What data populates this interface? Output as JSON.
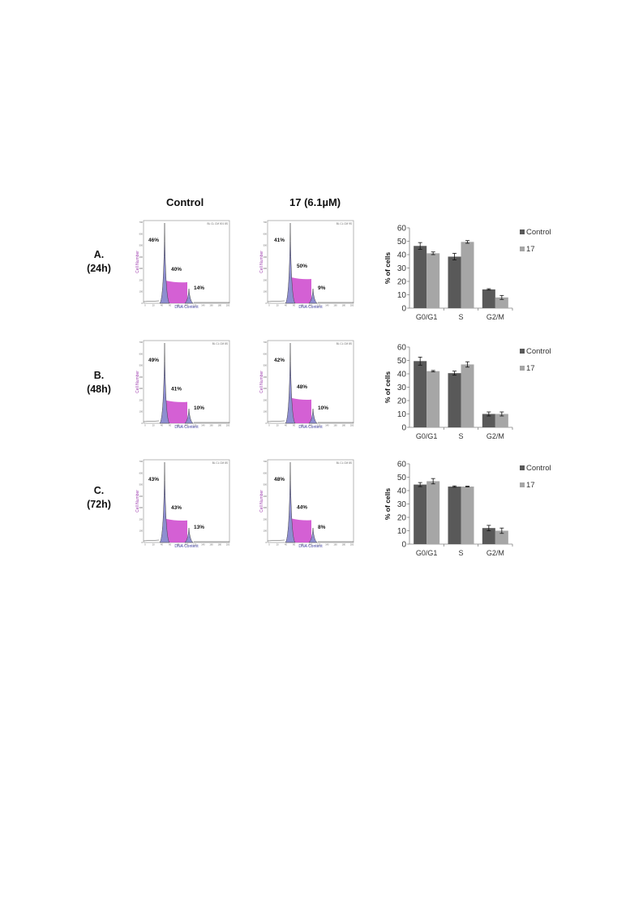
{
  "headers": {
    "control": "Control",
    "treated": "17 (6.1µM)"
  },
  "rows": [
    {
      "label": "A.\n(24h)",
      "control_hist": {
        "header": "BL CL CM 001 8S",
        "g0g1": "46%",
        "s": "40%",
        "g2m": "14%"
      },
      "treated_hist": {
        "header": "BL CL CM 9S",
        "g0g1": "41%",
        "s": "50%",
        "g2m": "9%"
      }
    },
    {
      "label": "B.\n(48h)",
      "control_hist": {
        "header": "BL CL CM 8S",
        "g0g1": "49%",
        "s": "41%",
        "g2m": "10%"
      },
      "treated_hist": {
        "header": "BL CL CM 8S",
        "g0g1": "42%",
        "s": "48%",
        "g2m": "10%"
      }
    },
    {
      "label": "C.\n(72h)",
      "control_hist": {
        "header": "BL CL CM 8S",
        "g0g1": "43%",
        "s": "43%",
        "g2m": "13%"
      },
      "treated_hist": {
        "header": "BL CL CM 8S",
        "g0g1": "48%",
        "s": "44%",
        "g2m": "8%"
      }
    }
  ],
  "hist_axes": {
    "ylabel": "Cell Number",
    "xlabel": "DNA Content",
    "yticks": [
      "700",
      "600",
      "500",
      "400",
      "300",
      "200",
      "100",
      "0"
    ],
    "xticks": [
      "0",
      "20",
      "40",
      "60",
      "80",
      "100",
      "120",
      "140",
      "160",
      "180",
      "200"
    ],
    "fill_color": "#cc44cc",
    "peak_color": "#8e8ed0"
  },
  "chart_data": [
    {
      "type": "bar",
      "categories": [
        "G0/G1",
        "S",
        "G2/M"
      ],
      "series": [
        {
          "name": "Control",
          "values": [
            46.5,
            38.5,
            14
          ],
          "errors": [
            2.5,
            2.5,
            0.5
          ]
        },
        {
          "name": "17",
          "values": [
            41,
            49.5,
            8
          ],
          "errors": [
            1,
            1,
            1.5
          ]
        }
      ],
      "ylabel": "% of cells",
      "ylim": [
        0,
        60
      ],
      "yticks": [
        0,
        10,
        20,
        30,
        40,
        50,
        60
      ],
      "legend": "right"
    },
    {
      "type": "bar",
      "categories": [
        "G0/G1",
        "S",
        "G2/M"
      ],
      "series": [
        {
          "name": "Control",
          "values": [
            49.5,
            40.5,
            10
          ],
          "errors": [
            3,
            1.5,
            1.5
          ]
        },
        {
          "name": "17",
          "values": [
            42,
            47,
            10
          ],
          "errors": [
            0.5,
            2,
            1.5
          ]
        }
      ],
      "ylabel": "% of cells",
      "ylim": [
        0,
        60
      ],
      "yticks": [
        0,
        10,
        20,
        30,
        40,
        50,
        60
      ],
      "legend": "right"
    },
    {
      "type": "bar",
      "categories": [
        "G0/G1",
        "S",
        "G2/M"
      ],
      "series": [
        {
          "name": "Control",
          "values": [
            44.5,
            43,
            12
          ],
          "errors": [
            1.5,
            0.5,
            2
          ]
        },
        {
          "name": "17",
          "values": [
            47,
            43,
            10
          ],
          "errors": [
            2,
            0.3,
            2
          ]
        }
      ],
      "ylabel": "% of cells",
      "ylim": [
        0,
        60
      ],
      "yticks": [
        0,
        10,
        20,
        30,
        40,
        50,
        60
      ],
      "legend": "right"
    }
  ],
  "colors": {
    "control": "#595959",
    "treated": "#a6a6a6",
    "axis": "#808080"
  }
}
